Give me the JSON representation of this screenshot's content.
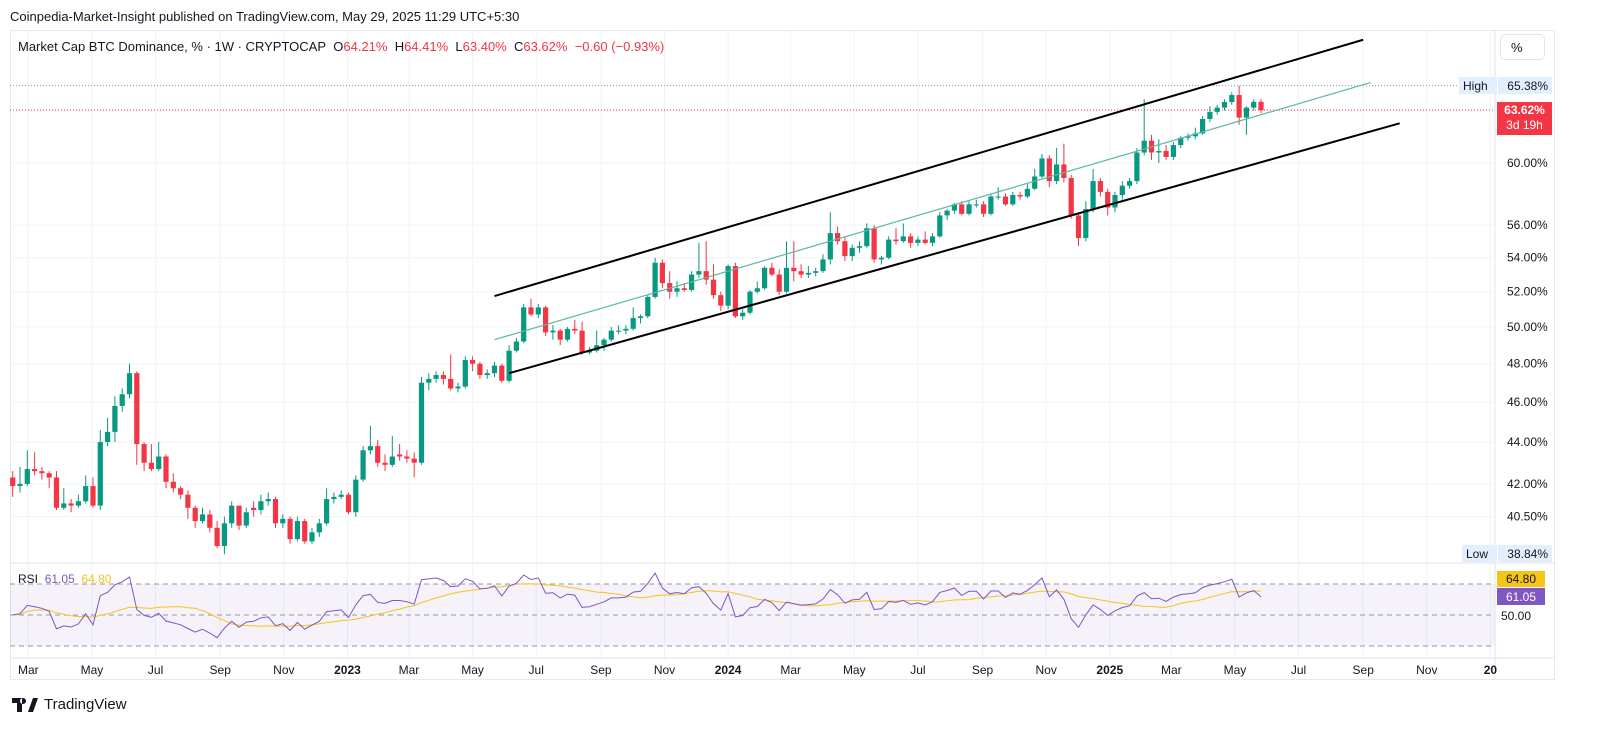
{
  "published": "Coinpedia-Market-Insight published on TradingView.com, May 29, 2025 11:29 UTC+5:30",
  "legend": {
    "symbol": "Market Cap BTC Dominance, % · 1W · CRYPTOCAP",
    "o_label": "O",
    "o": "64.21%",
    "h_label": "H",
    "h": "64.41%",
    "l_label": "L",
    "l": "63.40%",
    "c_label": "C",
    "c": "63.62%",
    "change": "−0.60 (−0.93%)"
  },
  "scale_button": "%",
  "badges": {
    "high_label": "High",
    "high_value": "65.38%",
    "last_value": "63.62%",
    "countdown": "3d 19h",
    "low_label": "Low",
    "low_value": "38.84%"
  },
  "rsi": {
    "label": "RSI",
    "value": "61.05",
    "ma_value": "64.80",
    "mid_label": "50.00",
    "levels": [
      70,
      50,
      30
    ],
    "period": 14,
    "colors": {
      "rsi": "#7e57c2",
      "ma": "#f5c518",
      "band": "#7e57c2"
    }
  },
  "logo_text": "TradingView",
  "colors": {
    "up": "#089981",
    "down": "#f23645",
    "channel": "#000000",
    "midline": "#5bb8a4"
  },
  "chart_data": {
    "type": "candlestick",
    "interval": "1W",
    "scale": "log",
    "last_candle_week": "2025-05-26",
    "ylim": [
      38.5,
      69
    ],
    "grid": true,
    "y_ticks": [
      "60.00%",
      "56.00%",
      "54.00%",
      "52.00%",
      "50.00%",
      "48.00%",
      "46.00%",
      "44.00%",
      "42.00%",
      "40.50%"
    ],
    "x_ticks": [
      {
        "label": "Mar",
        "date": "2022-03-01"
      },
      {
        "label": "May",
        "date": "2022-05-01"
      },
      {
        "label": "Jul",
        "date": "2022-07-01"
      },
      {
        "label": "Sep",
        "date": "2022-09-01"
      },
      {
        "label": "Nov",
        "date": "2022-11-01"
      },
      {
        "label": "2023",
        "date": "2023-01-01",
        "bold": true
      },
      {
        "label": "Mar",
        "date": "2023-03-01"
      },
      {
        "label": "May",
        "date": "2023-05-01"
      },
      {
        "label": "Jul",
        "date": "2023-07-01"
      },
      {
        "label": "Sep",
        "date": "2023-09-01"
      },
      {
        "label": "Nov",
        "date": "2023-11-01"
      },
      {
        "label": "2024",
        "date": "2024-01-01",
        "bold": true
      },
      {
        "label": "Mar",
        "date": "2024-03-01"
      },
      {
        "label": "May",
        "date": "2024-05-01"
      },
      {
        "label": "Jul",
        "date": "2024-07-01"
      },
      {
        "label": "Sep",
        "date": "2024-09-01"
      },
      {
        "label": "Nov",
        "date": "2024-11-01"
      },
      {
        "label": "2025",
        "date": "2025-01-01",
        "bold": true
      },
      {
        "label": "Mar",
        "date": "2025-03-01"
      },
      {
        "label": "May",
        "date": "2025-05-01"
      },
      {
        "label": "Jul",
        "date": "2025-07-01"
      },
      {
        "label": "Sep",
        "date": "2025-09-01"
      },
      {
        "label": "Nov",
        "date": "2025-11-01"
      },
      {
        "label": "20",
        "date": "2026-01-01",
        "bold": true
      }
    ],
    "high_line": 65.38,
    "last_price": 63.62,
    "trend_lines": [
      {
        "role": "channel-upper",
        "from": [
          "2023-05-22",
          51.75
        ],
        "to": [
          "2025-09-01",
          68.8
        ]
      },
      {
        "role": "channel-lower",
        "from": [
          "2023-06-05",
          47.5
        ],
        "to": [
          "2025-10-06",
          62.7
        ]
      },
      {
        "role": "channel-mid",
        "from": [
          "2023-05-22",
          49.3
        ],
        "to": [
          "2025-09-08",
          65.6
        ]
      }
    ],
    "candles_ohlc": [
      [
        42.3,
        42.6,
        41.4,
        41.9
      ],
      [
        41.9,
        42.8,
        41.6,
        42.0
      ],
      [
        42.0,
        43.6,
        41.9,
        42.7
      ],
      [
        42.7,
        43.5,
        42.4,
        42.6
      ],
      [
        42.6,
        42.8,
        42.2,
        42.5
      ],
      [
        42.5,
        42.6,
        41.8,
        42.3
      ],
      [
        42.3,
        42.6,
        40.8,
        40.9
      ],
      [
        40.9,
        41.8,
        40.8,
        41.1
      ],
      [
        41.1,
        41.3,
        40.7,
        41.0
      ],
      [
        41.0,
        41.5,
        40.9,
        41.2
      ],
      [
        41.2,
        42.4,
        41.1,
        41.9
      ],
      [
        41.9,
        42.3,
        40.9,
        41.0
      ],
      [
        41.0,
        44.6,
        40.8,
        44.0
      ],
      [
        44.0,
        45.2,
        43.8,
        44.5
      ],
      [
        44.5,
        46.3,
        44.0,
        45.8
      ],
      [
        45.8,
        46.7,
        45.5,
        46.4
      ],
      [
        46.4,
        48.0,
        46.2,
        47.5
      ],
      [
        47.5,
        47.6,
        42.9,
        43.9
      ],
      [
        43.9,
        44.0,
        42.6,
        43.0
      ],
      [
        43.0,
        43.9,
        42.6,
        42.7
      ],
      [
        42.7,
        44.0,
        42.6,
        43.3
      ],
      [
        43.3,
        43.4,
        41.8,
        42.1
      ],
      [
        42.1,
        42.5,
        41.6,
        41.8
      ],
      [
        41.8,
        41.9,
        41.3,
        41.5
      ],
      [
        41.5,
        41.7,
        40.4,
        40.9
      ],
      [
        40.9,
        41.0,
        40.0,
        40.3
      ],
      [
        40.3,
        40.9,
        40.2,
        40.6
      ],
      [
        40.6,
        40.8,
        39.8,
        40.0
      ],
      [
        40.0,
        40.3,
        39.1,
        39.2
      ],
      [
        39.2,
        40.5,
        38.84,
        40.2
      ],
      [
        40.2,
        41.2,
        40.0,
        41.0
      ],
      [
        41.0,
        41.0,
        39.9,
        40.1
      ],
      [
        40.1,
        40.9,
        40.0,
        40.7
      ],
      [
        40.9,
        41.2,
        40.5,
        40.8
      ],
      [
        40.8,
        41.5,
        40.6,
        41.2
      ],
      [
        41.2,
        41.6,
        41.0,
        41.3
      ],
      [
        41.3,
        41.4,
        40.0,
        40.2
      ],
      [
        40.2,
        40.6,
        40.0,
        40.4
      ],
      [
        40.4,
        40.5,
        39.3,
        39.5
      ],
      [
        39.5,
        40.5,
        39.4,
        40.3
      ],
      [
        40.3,
        40.4,
        39.3,
        39.4
      ],
      [
        39.4,
        40.0,
        39.3,
        39.8
      ],
      [
        39.8,
        40.4,
        39.6,
        40.2
      ],
      [
        40.2,
        41.8,
        40.1,
        41.3
      ],
      [
        41.3,
        41.6,
        41.1,
        41.4
      ],
      [
        41.4,
        41.7,
        41.3,
        41.5
      ],
      [
        41.5,
        41.6,
        40.6,
        40.7
      ],
      [
        40.7,
        42.4,
        40.5,
        42.2
      ],
      [
        42.2,
        43.8,
        42.1,
        43.6
      ],
      [
        43.6,
        44.8,
        43.4,
        43.8
      ],
      [
        43.8,
        44.1,
        42.8,
        43.0
      ],
      [
        43.0,
        43.4,
        42.6,
        42.9
      ],
      [
        42.9,
        44.3,
        42.8,
        43.3
      ],
      [
        43.4,
        43.9,
        43.1,
        43.3
      ],
      [
        43.3,
        43.6,
        43.0,
        43.2
      ],
      [
        43.2,
        43.5,
        42.3,
        43.0
      ],
      [
        43.0,
        47.3,
        42.9,
        47.0
      ],
      [
        47.0,
        47.5,
        46.6,
        47.2
      ],
      [
        47.2,
        47.6,
        47.0,
        47.4
      ],
      [
        47.4,
        47.6,
        46.9,
        47.2
      ],
      [
        47.2,
        48.5,
        46.6,
        46.7
      ],
      [
        46.7,
        47.0,
        46.5,
        46.8
      ],
      [
        46.8,
        48.4,
        46.7,
        48.2
      ],
      [
        48.2,
        48.4,
        47.6,
        48.0
      ],
      [
        48.0,
        48.1,
        47.2,
        47.4
      ],
      [
        47.4,
        47.7,
        47.2,
        47.5
      ],
      [
        47.5,
        48.1,
        47.3,
        47.9
      ],
      [
        47.9,
        48.0,
        47.0,
        47.1
      ],
      [
        47.1,
        49.0,
        47.0,
        48.7
      ],
      [
        48.7,
        49.4,
        48.6,
        49.2
      ],
      [
        49.2,
        51.3,
        49.1,
        51.1
      ],
      [
        51.1,
        51.6,
        50.6,
        50.7
      ],
      [
        50.7,
        51.3,
        50.5,
        51.1
      ],
      [
        51.1,
        51.2,
        49.5,
        49.7
      ],
      [
        49.7,
        50.1,
        49.3,
        49.8
      ],
      [
        49.8,
        49.9,
        49.0,
        49.3
      ],
      [
        49.3,
        50.0,
        49.2,
        49.9
      ],
      [
        49.9,
        50.4,
        49.6,
        49.8
      ],
      [
        49.8,
        50.3,
        48.5,
        48.6
      ],
      [
        48.6,
        48.9,
        48.5,
        48.7
      ],
      [
        48.7,
        49.8,
        48.6,
        49.0
      ],
      [
        49.0,
        49.4,
        48.7,
        49.3
      ],
      [
        49.3,
        50.0,
        49.2,
        49.8
      ],
      [
        49.8,
        50.1,
        49.6,
        49.8
      ],
      [
        49.8,
        50.1,
        49.6,
        49.9
      ],
      [
        49.9,
        51.1,
        49.8,
        50.5
      ],
      [
        50.5,
        50.7,
        50.2,
        50.6
      ],
      [
        50.6,
        51.8,
        50.5,
        51.7
      ],
      [
        51.7,
        54.0,
        51.6,
        53.7
      ],
      [
        53.7,
        53.9,
        52.2,
        52.5
      ],
      [
        52.5,
        53.2,
        51.6,
        52.0
      ],
      [
        52.0,
        52.6,
        51.7,
        52.2
      ],
      [
        52.2,
        52.5,
        52.0,
        52.1
      ],
      [
        52.1,
        53.2,
        52.0,
        53.0
      ],
      [
        53.0,
        54.9,
        52.8,
        53.2
      ],
      [
        53.2,
        55.0,
        52.4,
        52.7
      ],
      [
        52.7,
        53.6,
        51.6,
        51.8
      ],
      [
        51.8,
        52.0,
        50.9,
        51.2
      ],
      [
        51.2,
        53.6,
        51.0,
        53.5
      ],
      [
        53.5,
        53.7,
        50.5,
        50.6
      ],
      [
        50.6,
        51.0,
        50.4,
        50.8
      ],
      [
        50.8,
        52.1,
        50.7,
        52.0
      ],
      [
        52.0,
        52.6,
        51.9,
        52.2
      ],
      [
        52.2,
        53.5,
        52.1,
        53.4
      ],
      [
        53.4,
        53.7,
        52.9,
        53.0
      ],
      [
        53.0,
        53.3,
        51.8,
        52.0
      ],
      [
        52.0,
        55.0,
        51.9,
        53.4
      ],
      [
        53.4,
        55.0,
        52.6,
        53.2
      ],
      [
        53.2,
        53.6,
        52.8,
        53.0
      ],
      [
        53.0,
        53.5,
        52.8,
        53.1
      ],
      [
        53.1,
        53.4,
        52.9,
        53.2
      ],
      [
        53.2,
        54.2,
        53.1,
        53.9
      ],
      [
        53.9,
        56.8,
        53.6,
        55.5
      ],
      [
        55.5,
        55.9,
        54.8,
        55.0
      ],
      [
        55.0,
        55.3,
        53.8,
        54.1
      ],
      [
        54.1,
        54.8,
        53.8,
        54.6
      ],
      [
        54.6,
        55.0,
        54.3,
        54.7
      ],
      [
        54.7,
        56.1,
        54.6,
        55.8
      ],
      [
        55.8,
        56.0,
        53.7,
        53.9
      ],
      [
        53.9,
        54.1,
        53.6,
        54.0
      ],
      [
        54.0,
        55.3,
        53.9,
        55.1
      ],
      [
        55.1,
        55.8,
        54.8,
        55.0
      ],
      [
        55.0,
        56.1,
        54.9,
        55.3
      ],
      [
        55.3,
        55.5,
        54.6,
        54.9
      ],
      [
        54.9,
        55.3,
        54.7,
        55.1
      ],
      [
        55.1,
        55.6,
        54.8,
        54.9
      ],
      [
        54.9,
        55.5,
        54.7,
        55.3
      ],
      [
        55.3,
        56.8,
        55.2,
        56.6
      ],
      [
        56.6,
        57.0,
        56.3,
        56.9
      ],
      [
        56.9,
        57.4,
        56.7,
        57.3
      ],
      [
        57.3,
        57.5,
        56.6,
        56.7
      ],
      [
        56.7,
        57.5,
        56.6,
        57.3
      ],
      [
        57.3,
        57.6,
        57.1,
        57.3
      ],
      [
        57.3,
        57.5,
        56.5,
        56.7
      ],
      [
        56.7,
        58.0,
        56.6,
        57.8
      ],
      [
        57.8,
        58.4,
        57.6,
        57.8
      ],
      [
        57.8,
        58.0,
        57.2,
        57.3
      ],
      [
        57.3,
        58.1,
        57.2,
        57.9
      ],
      [
        57.9,
        58.1,
        57.6,
        57.8
      ],
      [
        57.8,
        58.6,
        57.7,
        58.3
      ],
      [
        58.3,
        59.6,
        58.2,
        59.1
      ],
      [
        59.1,
        60.6,
        59.0,
        60.3
      ],
      [
        60.3,
        60.5,
        58.4,
        58.8
      ],
      [
        58.8,
        61.0,
        58.6,
        59.9
      ],
      [
        59.9,
        61.3,
        58.7,
        59.0
      ],
      [
        59.0,
        59.2,
        56.4,
        56.6
      ],
      [
        56.6,
        56.8,
        54.7,
        55.2
      ],
      [
        55.2,
        57.5,
        55.0,
        57.0
      ],
      [
        57.0,
        59.6,
        56.8,
        58.8
      ],
      [
        58.8,
        59.0,
        57.8,
        58.1
      ],
      [
        58.1,
        58.3,
        56.6,
        57.1
      ],
      [
        57.1,
        58.1,
        56.8,
        57.9
      ],
      [
        57.9,
        58.8,
        57.6,
        58.5
      ],
      [
        58.5,
        59.0,
        58.3,
        58.8
      ],
      [
        58.8,
        61.0,
        58.6,
        60.7
      ],
      [
        60.7,
        64.4,
        60.5,
        61.5
      ],
      [
        61.5,
        61.9,
        60.2,
        60.7
      ],
      [
        60.7,
        61.6,
        60.0,
        60.8
      ],
      [
        60.8,
        61.2,
        60.2,
        60.4
      ],
      [
        60.4,
        61.4,
        60.2,
        61.2
      ],
      [
        61.2,
        61.8,
        61.0,
        61.7
      ],
      [
        61.7,
        62.0,
        61.5,
        61.8
      ],
      [
        61.8,
        62.4,
        61.6,
        62.0
      ],
      [
        62.0,
        63.2,
        61.9,
        63.0
      ],
      [
        63.0,
        63.9,
        62.8,
        63.5
      ],
      [
        63.5,
        64.0,
        63.3,
        63.8
      ],
      [
        63.8,
        64.4,
        63.6,
        64.2
      ],
      [
        64.2,
        64.9,
        64.0,
        64.7
      ],
      [
        64.7,
        65.38,
        62.6,
        63.1
      ],
      [
        63.1,
        63.9,
        61.9,
        63.8
      ],
      [
        63.8,
        64.4,
        63.6,
        64.21
      ],
      [
        64.21,
        64.41,
        63.4,
        63.62
      ]
    ]
  }
}
